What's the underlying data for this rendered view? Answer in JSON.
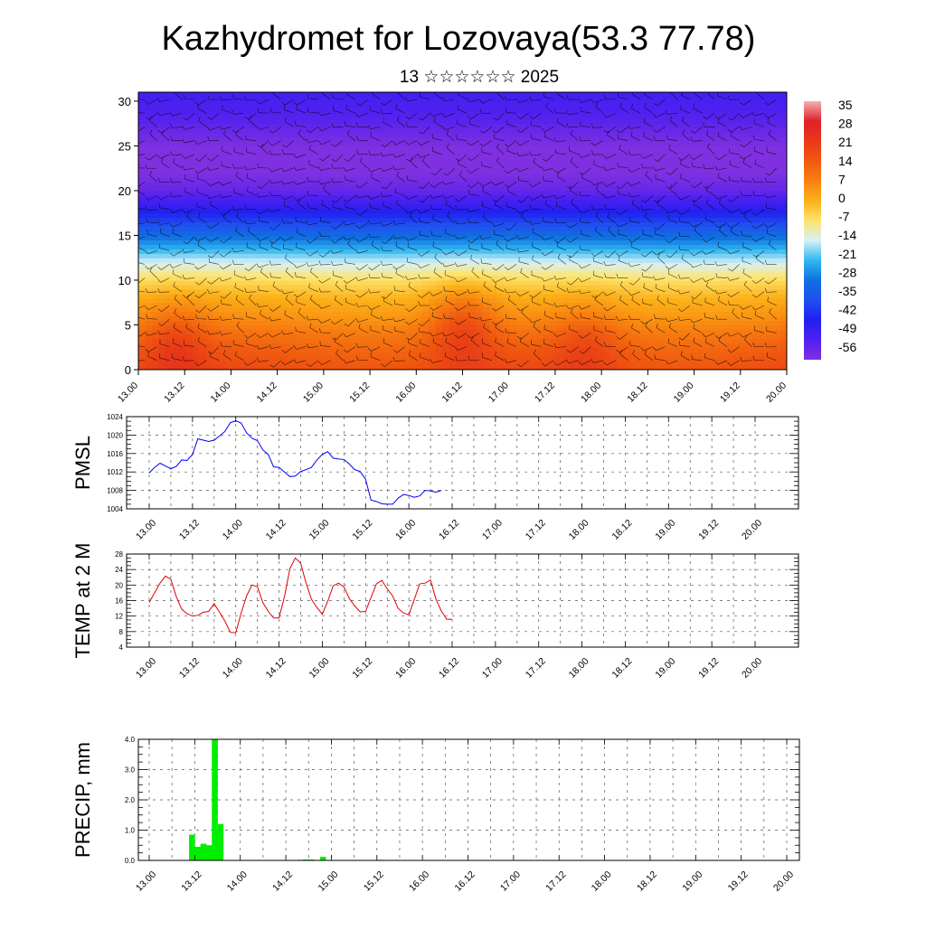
{
  "title": "Kazhydromet for Lozovaya(53.3 77.78)",
  "subtitle": "13 ☆☆☆☆☆☆ 2025",
  "chart_data": [
    {
      "type": "heatmap",
      "name": "cross-section",
      "ylim": [
        0,
        31
      ],
      "y_ticks": [
        "0",
        "5",
        "10",
        "15",
        "20",
        "25",
        "30"
      ],
      "x_ticks": [
        "13.00",
        "13.12",
        "14.00",
        "14.12",
        "15.00",
        "15.12",
        "16.00",
        "16.12",
        "17.00",
        "17.12",
        "18.00",
        "18.12",
        "19.00",
        "19.12",
        "20.00"
      ],
      "colorbar": {
        "labels": [
          "35",
          "28",
          "21",
          "14",
          "7",
          "0",
          "-7",
          "-14",
          "-21",
          "-28",
          "-35",
          "-42",
          "-49",
          "-56"
        ],
        "colors": [
          "#f4b0b0",
          "#e0202a",
          "#e83818",
          "#f05810",
          "#f88010",
          "#fcb018",
          "#fde46c",
          "#d8f0f8",
          "#30b8f0",
          "#1070e0",
          "#2050f0",
          "#2020f0",
          "#5020f0",
          "#8030e0"
        ]
      },
      "heights": [
        0,
        2,
        4,
        6,
        8,
        10,
        12,
        14,
        16,
        18,
        20,
        22,
        24,
        26,
        28,
        31
      ],
      "column_times": [
        0,
        1,
        2,
        3,
        4,
        5,
        6
      ],
      "base_profile": [
        16,
        13,
        9,
        4,
        0,
        -6,
        -14,
        -24,
        -34,
        -44,
        -52,
        -56,
        -57,
        -54,
        -50,
        -47
      ],
      "warm_spots": [
        {
          "t": 0.35,
          "h": 3,
          "amp": 8
        },
        {
          "t": 3.0,
          "h": 5,
          "amp": 10
        },
        {
          "t": 4.15,
          "h": 3,
          "amp": 6
        },
        {
          "t": 6.4,
          "h": 3,
          "amp": 7
        }
      ]
    },
    {
      "type": "line",
      "name": "PMSL",
      "ylabel": "PMSL",
      "ylim": [
        1004,
        1024
      ],
      "y_ticks": [
        "1004",
        "1008",
        "1012",
        "1016",
        "1020",
        "1024"
      ],
      "x_ticks": [
        "13.00",
        "13.12",
        "14.00",
        "14.12",
        "15.00",
        "15.12",
        "16.00",
        "16.12",
        "17.00",
        "17.12",
        "18.00",
        "18.12",
        "19.00",
        "19.12",
        "20.00"
      ],
      "color": "#0000ff",
      "values": [
        1011.8,
        1013.0,
        1013.9,
        1013.3,
        1012.7,
        1013.2,
        1014.6,
        1014.5,
        1015.8,
        1019.2,
        1018.9,
        1018.6,
        1018.9,
        1019.8,
        1020.8,
        1022.7,
        1023.1,
        1022.6,
        1020.5,
        1019.3,
        1018.8,
        1016.8,
        1015.8,
        1013.1,
        1013.0,
        1012.0,
        1011.0,
        1011.1,
        1012.1,
        1012.5,
        1013.0,
        1014.6,
        1015.8,
        1016.4,
        1015.0,
        1014.8,
        1014.7,
        1013.7,
        1012.5,
        1012.1,
        1010.4,
        1005.9,
        1005.6,
        1005.1,
        1005.0,
        1005.0,
        1006.3,
        1007.1,
        1006.9,
        1006.5,
        1006.8,
        1008.0,
        1007.9,
        1007.6,
        1008.0
      ]
    },
    {
      "type": "line",
      "name": "TEMP at 2 M",
      "ylabel": "TEMP at 2 M",
      "ylim": [
        4,
        28
      ],
      "y_ticks": [
        "4",
        "8",
        "12",
        "16",
        "20",
        "24",
        "28"
      ],
      "x_ticks": [
        "13.00",
        "13.12",
        "14.00",
        "14.12",
        "15.00",
        "15.12",
        "16.00",
        "16.12",
        "17.00",
        "17.12",
        "18.00",
        "18.12",
        "19.00",
        "19.12",
        "20.00"
      ],
      "color": "#e00000",
      "values": [
        15.5,
        18.0,
        20.5,
        22.3,
        21.5,
        17.0,
        13.8,
        12.6,
        12.0,
        12.2,
        13.0,
        13.2,
        15.2,
        13.0,
        10.7,
        7.8,
        7.7,
        12.8,
        17.2,
        20.0,
        19.6,
        15.5,
        13.2,
        11.5,
        11.5,
        17.0,
        24.2,
        27.0,
        25.6,
        20.5,
        16.3,
        14.2,
        12.5,
        15.8,
        19.8,
        20.5,
        19.5,
        16.5,
        14.6,
        13.1,
        13.2,
        16.8,
        20.3,
        21.2,
        19.0,
        17.2,
        14.0,
        12.8,
        12.3,
        16.3,
        20.3,
        20.5,
        21.3,
        16.4,
        13.3,
        11.2,
        11.2
      ]
    },
    {
      "type": "bar",
      "name": "PRECIP, mm",
      "ylabel": "PRECIP, mm",
      "ylim": [
        0,
        4
      ],
      "y_ticks": [
        "0.0",
        "1.0",
        "2.0",
        "3.0",
        "4.0"
      ],
      "x_ticks": [
        "13.00",
        "13.12",
        "14.00",
        "14.12",
        "15.00",
        "15.12",
        "16.00",
        "16.12",
        "17.00",
        "17.12",
        "18.00",
        "18.12",
        "19.00",
        "19.12",
        "20.00"
      ],
      "color": "#00ee00",
      "bar_hours": 3,
      "values": [
        0,
        0,
        0,
        0,
        0,
        0,
        0,
        0.85,
        0.45,
        0.55,
        0.5,
        4.0,
        1.2,
        0,
        0,
        0,
        0,
        0,
        0,
        0,
        0,
        0,
        0,
        0,
        0,
        0,
        0.02,
        0.03,
        0.03,
        0,
        0.12,
        0,
        0,
        0,
        0,
        0,
        0,
        0,
        0,
        0,
        0.02,
        0,
        0,
        0,
        0,
        0,
        0,
        0,
        0,
        0,
        0,
        0,
        0,
        0,
        0,
        0
      ]
    }
  ]
}
